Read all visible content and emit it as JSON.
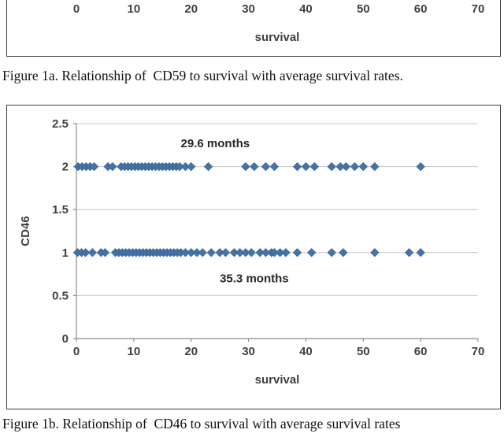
{
  "page": {
    "captions": {
      "figure1a": "Figure 1a. Relationship of  CD59 to survival with average survival rates.",
      "figure1b": "Figure 1b. Relationship of  CD46 to survival with average survival rates"
    }
  },
  "colors": {
    "marker": "#4573a7",
    "marker_edge": "#335d8c",
    "gridline": "#c6c6c6",
    "axis": "#8c8c8c",
    "tick_text": "#3f3f3f",
    "annotation_text": "#262626"
  },
  "chart_data": [
    {
      "id": "figure1a_fragment",
      "type": "scatter",
      "description": "Bottom edge of the CD59 chart; only x-axis tick labels and axis title are visible in the crop",
      "xlabel": "survival",
      "xticks": [
        0,
        10,
        20,
        30,
        40,
        50,
        60,
        70
      ],
      "xlim": [
        0,
        70
      ]
    },
    {
      "id": "figure1b_cd46",
      "type": "scatter",
      "title": "",
      "xlabel": "survival",
      "ylabel": "CD46",
      "xlim": [
        0,
        70
      ],
      "ylim": [
        0,
        2.5
      ],
      "xticks": [
        0,
        10,
        20,
        30,
        40,
        50,
        60,
        70
      ],
      "yticks": [
        0,
        0.5,
        1,
        1.5,
        2,
        2.5
      ],
      "grid": true,
      "legend": "none",
      "annotations": [
        {
          "text": "29.6 months",
          "x": 24.2,
          "y": 2.27
        },
        {
          "text": "35.3 months",
          "x": 31.0,
          "y": 0.7
        }
      ],
      "series": [
        {
          "name": "CD46 = 2",
          "y": 2,
          "x": [
            0.3,
            1,
            1.7,
            2.4,
            3.1,
            5.5,
            6.3,
            7.8,
            8.4,
            9,
            9.6,
            10.2,
            10.8,
            11.4,
            12,
            12.6,
            13.2,
            13.8,
            14.4,
            15,
            15.6,
            16.2,
            16.8,
            17.4,
            18,
            19,
            20,
            23,
            29.5,
            31,
            33,
            34.5,
            38.5,
            40,
            41.5,
            44.5,
            46,
            47,
            48.5,
            50,
            52,
            60
          ]
        },
        {
          "name": "CD46 = 1",
          "y": 1,
          "x": [
            0.2,
            0.9,
            1.6,
            2.8,
            4.3,
            5,
            6.8,
            7.4,
            8,
            8.6,
            9.2,
            9.8,
            10.4,
            11,
            11.6,
            12.2,
            12.8,
            13.4,
            14,
            14.6,
            15.2,
            15.8,
            16.4,
            17,
            17.6,
            18.2,
            19,
            20,
            21,
            22,
            23.5,
            25,
            26,
            27.5,
            28.5,
            29.5,
            30.5,
            32,
            33,
            34,
            34.5,
            35.5,
            36.5,
            38.5,
            41,
            44.5,
            46.5,
            52,
            58,
            60
          ]
        }
      ]
    }
  ]
}
